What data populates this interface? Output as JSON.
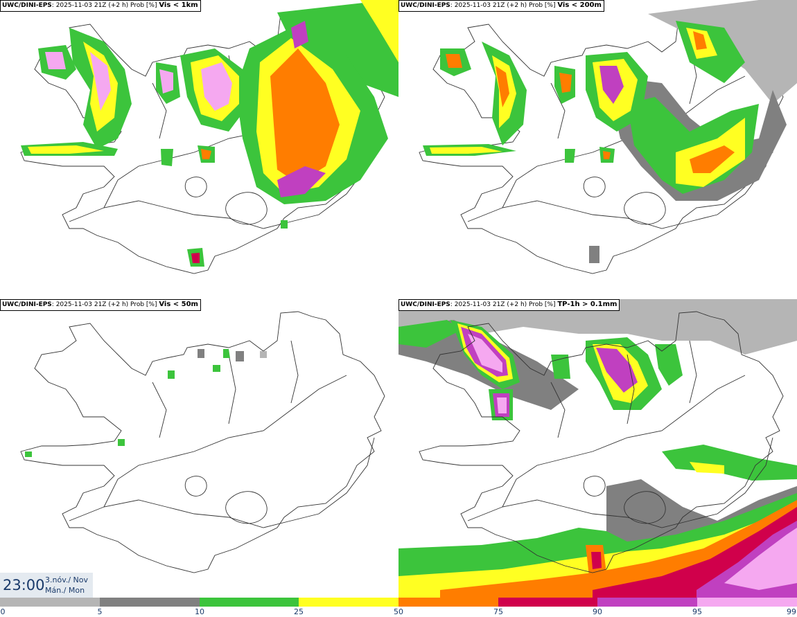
{
  "panels": [
    {
      "source": "UWC/DINI-EPS",
      "run": ": 2025-11-03 21Z (+2 h) Prob [%]",
      "variable": "Vis < 1km"
    },
    {
      "source": "UWC/DINI-EPS",
      "run": ": 2025-11-03 21Z (+2 h) Prob [%]",
      "variable": "Vis < 200m"
    },
    {
      "source": "UWC/DINI-EPS",
      "run": ": 2025-11-03 21Z (+2 h) Prob [%]",
      "variable": "Vis < 50m"
    },
    {
      "source": "UWC/DINI-EPS",
      "run": ": 2025-11-03 21Z (+2 h) Prob [%]",
      "variable": "TP-1h > 0.1mm"
    }
  ],
  "valid_time": {
    "clock": "23:00",
    "date_line1": "3.nóv./ Nov",
    "date_line2": "Mán./ Mon"
  },
  "colorbar": {
    "ticks": [
      "0",
      "5",
      "10",
      "25",
      "50",
      "75",
      "90",
      "95",
      "99"
    ],
    "colors": [
      "#ffffff",
      "#b5b5b5",
      "#808080",
      "#3cc43c",
      "#ffff22",
      "#ff7d00",
      "#d0004b",
      "#c040c0",
      "#f5a8f0"
    ]
  }
}
